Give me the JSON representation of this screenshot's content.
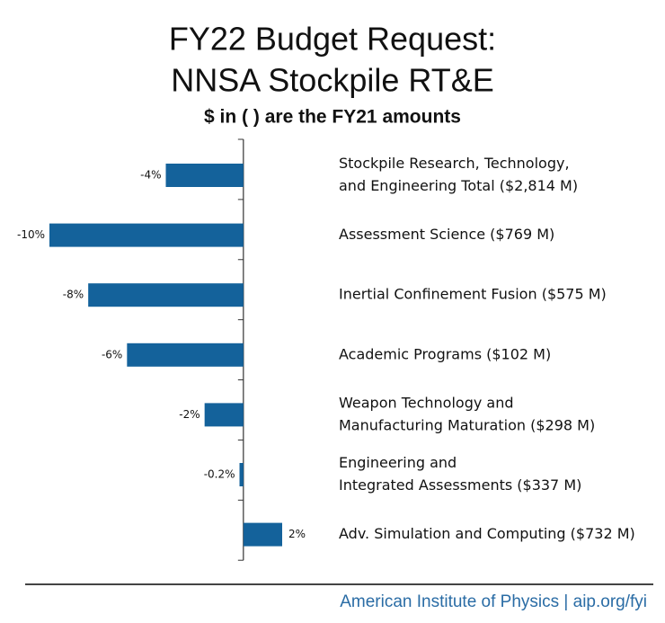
{
  "chart_data": {
    "type": "bar",
    "orientation": "horizontal",
    "title": [
      "FY22 Budget Request:",
      "NNSA Stockpile RT&E"
    ],
    "subtitle": "$ in ( ) are the FY21 amounts",
    "categories": [
      [
        "Stockpile Research, Technology,",
        "and Engineering Total ($2,814 M)"
      ],
      [
        "Assessment Science ($769 M)"
      ],
      [
        "Inertial Confinement Fusion ($575 M)"
      ],
      [
        "Academic Programs ($102 M)"
      ],
      [
        "Weapon Technology and",
        "Manufacturing Maturation ($298 M)"
      ],
      [
        "Engineering and",
        "Integrated Assessments ($337 M)"
      ],
      [
        "Adv. Simulation and Computing ($732 M)"
      ]
    ],
    "values": [
      -4,
      -10,
      -8,
      -6,
      -2,
      -0.2,
      2
    ],
    "value_labels": [
      "-4%",
      "-10%",
      "-8%",
      "-6%",
      "-2%",
      "-0.2%",
      "2%"
    ],
    "color": "#14629b",
    "xlim": [
      -10,
      2
    ],
    "source": "American Institute of Physics | aip.org/fyi"
  }
}
